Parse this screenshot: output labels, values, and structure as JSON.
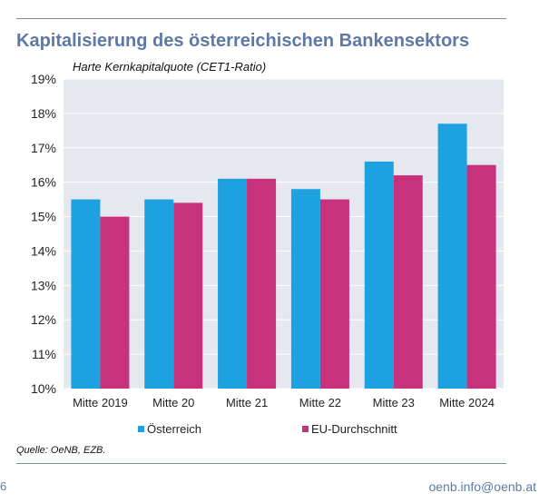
{
  "header": {
    "title": "Kapitalisierung des österreichischen Bankensektors",
    "subtitle": "Harte Kernkapitalquote (CET1-Ratio)"
  },
  "footer": {
    "source": "Quelle: OeNB, EZB.",
    "page_number": "6",
    "email": "oenb.info@oenb.at"
  },
  "chart_data": {
    "type": "bar",
    "title": "",
    "xlabel": "",
    "ylabel": "",
    "ylim": [
      10,
      19
    ],
    "y_ticks": [
      "10%",
      "11%",
      "12%",
      "13%",
      "14%",
      "15%",
      "16%",
      "17%",
      "18%",
      "19%"
    ],
    "grid": true,
    "legend_position": "bottom",
    "categories": [
      "Mitte 2019",
      "Mitte 20",
      "Mitte 21",
      "Mitte 22",
      "Mitte 23",
      "Mitte 2024"
    ],
    "series": [
      {
        "name": "Österreich",
        "color": "#1ea1e1",
        "values": [
          15.5,
          15.5,
          16.1,
          15.8,
          16.6,
          17.7
        ]
      },
      {
        "name": "EU-Durchschnitt",
        "color": "#c8317c",
        "values": [
          15.0,
          15.4,
          16.1,
          15.5,
          16.2,
          16.5
        ]
      }
    ],
    "plot_background": "#e6e8ef"
  }
}
